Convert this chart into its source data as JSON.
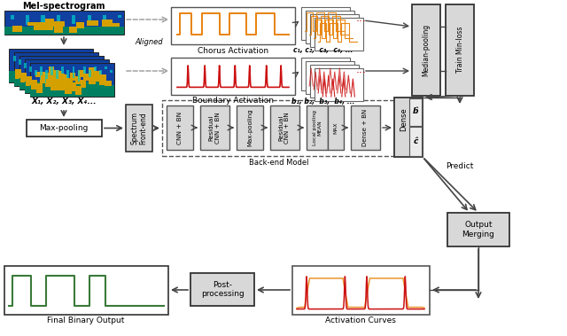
{
  "bg_color": "#ffffff",
  "mel_spec_label": "Mel-spectrogram",
  "chorus_act_label": "Chorus Activation",
  "boundary_act_label": "Boundary Activation",
  "aligned_label": "Aligned",
  "c_labels": "c₁, c₂,  c₃,  c₄, ...",
  "b_labels": "b₁, b₂,  b₃,  b₄, ...",
  "median_pooling_label": "Median-pooling",
  "train_minloss_label": "Train Min-loss",
  "x_labels": "X₁, X₂, X₃, X₄...",
  "maxpooling_label": "Max-pooling",
  "spectrum_frontend_label": "Spectrum\nFront-end",
  "cnn_bn_label": "CNN + BN",
  "residual_cnn_bn1_label": "Residual\nCNN + BN",
  "maxpooling2_label": "Max-pooling",
  "residual_cnn_bn2_label": "Residual\nCNN + BN",
  "local_pooling_label": "Local pooling",
  "mean_label": "MEAN",
  "max_label": "MAX",
  "dense_bn_label": "Dense + BN",
  "backend_model_label": "Back-end Model",
  "dense_label": "Dense",
  "b_hat_label": "b̂",
  "c_hat_label": "ĉ",
  "predict_label": "Predict",
  "output_merging_label": "Output\nMerging",
  "final_binary_label": "Final Binary Output",
  "post_processing_label": "Post-\nprocessing",
  "activation_curves_label": "Activation Curves",
  "orange_color": "#E8820A",
  "red_color": "#CC1111",
  "green_color": "#3A7A3A",
  "box_gray": "#D8D8D8",
  "box_light": "#EBEBEB",
  "box_white": "#FFFFFF",
  "box_dark": "#888888",
  "box_edge": "#555555",
  "box_edge_dark": "#333333",
  "arrow_color": "#444444",
  "dashed_color": "#999999",
  "dot_red": "#CC0000"
}
